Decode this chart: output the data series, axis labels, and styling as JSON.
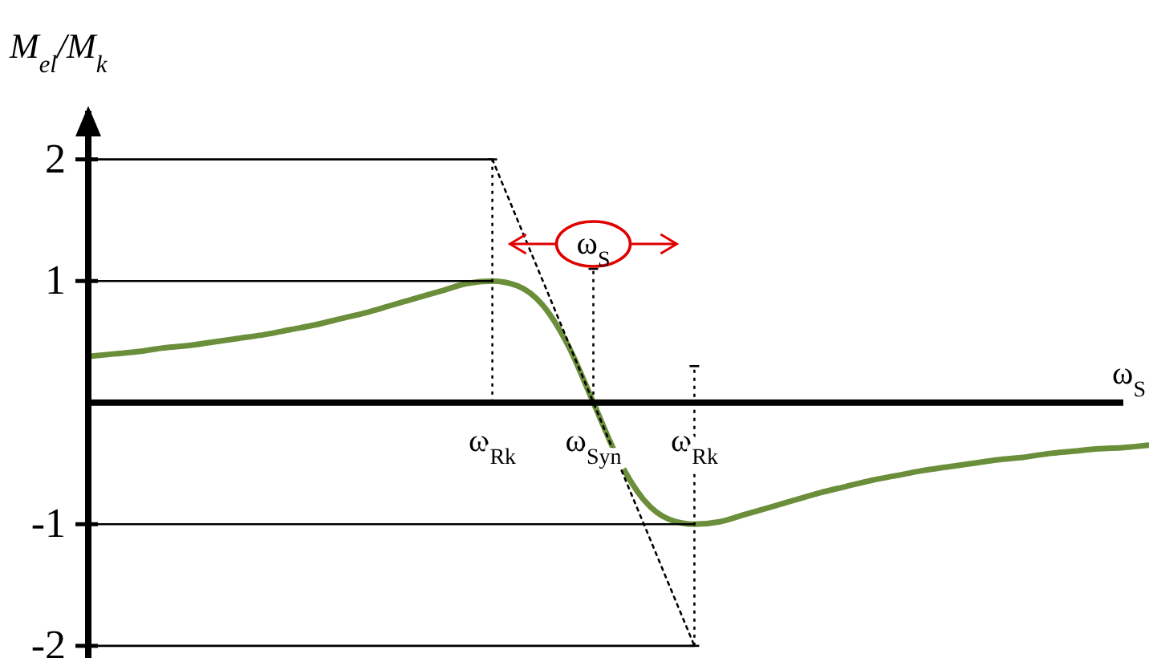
{
  "chart_data": {
    "type": "line",
    "xlabel": "ω$_{S}$",
    "ylabel": "M$_{el}$/M$_{k}$",
    "ylim": [
      -2.1,
      2.4
    ],
    "yticks": [
      -2,
      -1,
      1,
      2
    ],
    "categories": [
      null,
      null,
      null,
      null,
      null,
      null,
      null,
      null,
      null,
      null,
      null,
      null,
      null,
      null,
      null,
      null,
      "ω$_{Rk}$",
      null,
      null,
      null,
      "ω$_{Syn}$",
      null,
      null,
      null,
      "ω$_{Rk}$",
      null,
      null,
      null,
      null,
      null,
      null,
      null,
      null,
      null,
      null,
      null,
      null,
      null,
      null,
      null,
      null,
      null,
      null
    ],
    "annotations": [
      "ω$_{S}$"
    ],
    "series": [
      {
        "color": "#6b8e3a",
        "line_style": "solid",
        "values": [
          0.38,
          0.4,
          0.42,
          0.45,
          0.47,
          0.5,
          0.53,
          0.56,
          0.6,
          0.64,
          0.69,
          0.74,
          0.8,
          0.86,
          0.92,
          0.98,
          1,
          0.96,
          0.8,
          0.47,
          0,
          -0.47,
          -0.8,
          -0.96,
          -1,
          -0.98,
          -0.92,
          -0.86,
          -0.8,
          -0.74,
          -0.69,
          -0.64,
          -0.6,
          -0.56,
          -0.53,
          -0.5,
          -0.47,
          -0.45,
          -0.42,
          -0.4,
          -0.38,
          -0.37,
          -0.35
        ]
      },
      {
        "color": "#000000",
        "line_style": "solid",
        "values": [
          2,
          2,
          2,
          2,
          2,
          2,
          2,
          2,
          2,
          2,
          2,
          2,
          2,
          2,
          2,
          2,
          2,
          null,
          null,
          null,
          null,
          null,
          null,
          null,
          null,
          null,
          null,
          null,
          null,
          null,
          null,
          null,
          null,
          null,
          null,
          null,
          null,
          null,
          null,
          null,
          null,
          null,
          null
        ]
      },
      {
        "color": "#000000",
        "line_style": "solid",
        "values": [
          1,
          1,
          1,
          1,
          1,
          1,
          1,
          1,
          1,
          1,
          1,
          1,
          1,
          1,
          1,
          1,
          1,
          null,
          null,
          null,
          null,
          null,
          null,
          null,
          null,
          null,
          null,
          null,
          null,
          null,
          null,
          null,
          null,
          null,
          null,
          null,
          null,
          null,
          null,
          null,
          null,
          null,
          null
        ]
      },
      {
        "color": "#000000",
        "line_style": "solid",
        "values": [
          -1,
          -1,
          -1,
          -1,
          -1,
          -1,
          -1,
          -1,
          -1,
          -1,
          -1,
          -1,
          -1,
          -1,
          -1,
          -1,
          -1,
          -1,
          -1,
          -1,
          -1,
          -1,
          -1,
          -1,
          -1,
          null,
          null,
          null,
          null,
          null,
          null,
          null,
          null,
          null,
          null,
          null,
          null,
          null,
          null,
          null,
          null,
          null,
          null
        ]
      },
      {
        "color": "#000000",
        "line_style": "solid",
        "values": [
          -2,
          -2,
          -2,
          -2,
          -2,
          -2,
          -2,
          -2,
          -2,
          -2,
          -2,
          -2,
          -2,
          -2,
          -2,
          -2,
          -2,
          -2,
          -2,
          -2,
          -2,
          -2,
          -2,
          -2,
          -2,
          null,
          null,
          null,
          null,
          null,
          null,
          null,
          null,
          null,
          null,
          null,
          null,
          null,
          null,
          null,
          null,
          null,
          null
        ]
      },
      {
        "color": "#000000",
        "line_style": "dotted",
        "values": [
          null,
          null,
          null,
          null,
          null,
          null,
          null,
          null,
          null,
          null,
          null,
          null,
          null,
          null,
          null,
          null,
          2,
          1.5,
          1,
          0.5,
          0,
          -0.5,
          -1,
          -1.5,
          -2,
          null,
          null,
          null,
          null,
          null,
          null,
          null,
          null,
          null,
          null,
          null,
          null,
          null,
          null,
          null,
          null,
          null,
          null
        ],
        "errors": [
          null,
          null,
          null,
          null,
          null,
          null,
          null,
          null,
          null,
          null,
          null,
          null,
          null,
          null,
          null,
          null,
          [
            0,
            2
          ],
          null,
          null,
          null,
          [
            0,
            1.1
          ],
          null,
          null,
          null,
          [
            -2,
            0.3
          ],
          null,
          null,
          null,
          null,
          null,
          null,
          null,
          null,
          null,
          null,
          null,
          null,
          null,
          null,
          null,
          null,
          null,
          null
        ]
      }
    ]
  }
}
